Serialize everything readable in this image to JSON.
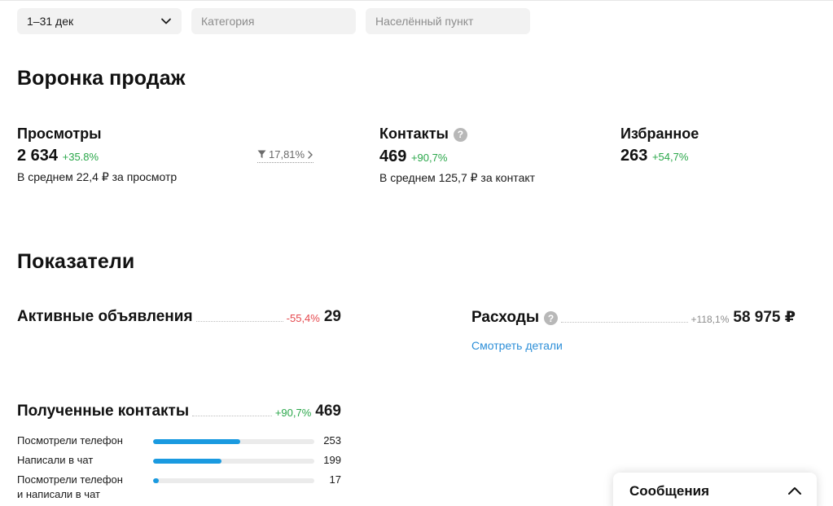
{
  "filters": {
    "period": "1–31 дек",
    "category_placeholder": "Категория",
    "location_placeholder": "Населённый пункт"
  },
  "funnel": {
    "title": "Воронка продаж",
    "views": {
      "label": "Просмотры",
      "value": "2 634",
      "delta": "+35.8%",
      "avg": "В среднем 22,4 ₽ за просмотр",
      "conversion": "17,81%"
    },
    "contacts": {
      "label": "Контакты",
      "value": "469",
      "delta": "+90,7%",
      "avg": "В среднем 125,7 ₽ за контакт"
    },
    "favorites": {
      "label": "Избранное",
      "value": "263",
      "delta": "+54,7%"
    }
  },
  "metrics": {
    "title": "Показатели",
    "active_ads": {
      "label": "Активные объявления",
      "delta": "-55,4%",
      "value": "29"
    },
    "expenses": {
      "label": "Расходы",
      "delta": "+118,1%",
      "value": "58 975 ₽",
      "details_link": "Смотреть детали"
    },
    "received_contacts": {
      "label": "Полученные контакты",
      "delta": "+90,7%",
      "value": "469",
      "rows": [
        {
          "label": "Посмотрели телефон",
          "value": "253",
          "fraction": 0.54
        },
        {
          "label": "Написали в чат",
          "value": "199",
          "fraction": 0.425
        },
        {
          "label_line1": "Посмотрели телефон",
          "label_line2": "и написали в чат",
          "value": "17",
          "fraction": 0.035
        }
      ]
    }
  },
  "messages_panel": {
    "title": "Сообщения"
  },
  "colors": {
    "accent": "#1a9ae0",
    "positive": "#2aa74a",
    "negative": "#e5484d",
    "link": "#2d8fd8"
  },
  "icons": [
    "chevron-down-icon",
    "funnel-icon",
    "chevron-right-icon",
    "help-icon",
    "chevron-up-icon"
  ]
}
